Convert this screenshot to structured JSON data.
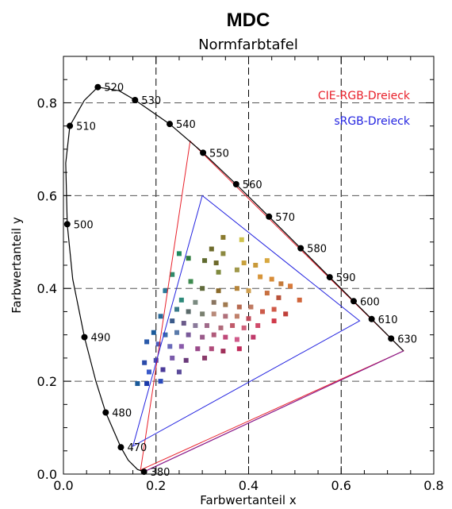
{
  "chart_data": {
    "type": "scatter",
    "title": "MDC",
    "subtitle": "Normfarbtafel",
    "xlabel": "Farbwertanteil x",
    "ylabel": "Farbwertanteil y",
    "xlim": [
      0.0,
      0.8
    ],
    "ylim": [
      0.0,
      0.9
    ],
    "xticks": [
      "0.0",
      "0.2",
      "0.4",
      "0.6",
      "0.8"
    ],
    "yticks": [
      "0.0",
      "0.2",
      "0.4",
      "0.6",
      "0.8"
    ],
    "grid": "dashed",
    "legend": [
      {
        "name": "CIE-RGB-Dreieck",
        "color": "#e8202a"
      },
      {
        "name": "sRGB-Dreieck",
        "color": "#2424e0"
      }
    ],
    "spectral_locus": {
      "color": "#000000",
      "points": [
        [
          0.7347,
          0.2653
        ],
        [
          0.7079,
          0.292
        ],
        [
          0.6658,
          0.334
        ],
        [
          0.627,
          0.3725
        ],
        [
          0.5752,
          0.4242
        ],
        [
          0.5125,
          0.4866
        ],
        [
          0.4441,
          0.5547
        ],
        [
          0.3731,
          0.6245
        ],
        [
          0.3016,
          0.6923
        ],
        [
          0.2296,
          0.7543
        ],
        [
          0.1547,
          0.8059
        ],
        [
          0.12,
          0.826
        ],
        [
          0.0743,
          0.8338
        ],
        [
          0.045,
          0.805
        ],
        [
          0.0139,
          0.7502
        ],
        [
          0.005,
          0.67
        ],
        [
          0.0082,
          0.5384
        ],
        [
          0.02,
          0.42
        ],
        [
          0.0454,
          0.295
        ],
        [
          0.07,
          0.2
        ],
        [
          0.0913,
          0.1327
        ],
        [
          0.11,
          0.09
        ],
        [
          0.1241,
          0.0578
        ],
        [
          0.14,
          0.03
        ],
        [
          0.16,
          0.01
        ],
        [
          0.1741,
          0.005
        ]
      ],
      "markers": [
        {
          "label": "630",
          "x": 0.7079,
          "y": 0.292
        },
        {
          "label": "610",
          "x": 0.6658,
          "y": 0.334
        },
        {
          "label": "600",
          "x": 0.627,
          "y": 0.3725
        },
        {
          "label": "590",
          "x": 0.5752,
          "y": 0.4242
        },
        {
          "label": "580",
          "x": 0.5125,
          "y": 0.4866
        },
        {
          "label": "570",
          "x": 0.4441,
          "y": 0.5547
        },
        {
          "label": "560",
          "x": 0.3731,
          "y": 0.6245
        },
        {
          "label": "550",
          "x": 0.3016,
          "y": 0.6923
        },
        {
          "label": "540",
          "x": 0.2296,
          "y": 0.7543
        },
        {
          "label": "530",
          "x": 0.1547,
          "y": 0.8059
        },
        {
          "label": "520",
          "x": 0.0743,
          "y": 0.8338
        },
        {
          "label": "510",
          "x": 0.0139,
          "y": 0.7502
        },
        {
          "label": "500",
          "x": 0.0082,
          "y": 0.5384
        },
        {
          "label": "490",
          "x": 0.0454,
          "y": 0.295
        },
        {
          "label": "480",
          "x": 0.0913,
          "y": 0.1327
        },
        {
          "label": "470",
          "x": 0.1241,
          "y": 0.0578
        },
        {
          "label": "380",
          "x": 0.1741,
          "y": 0.005
        }
      ]
    },
    "cie_rgb_triangle": [
      [
        0.7347,
        0.2653
      ],
      [
        0.2738,
        0.7174
      ],
      [
        0.1666,
        0.0089
      ]
    ],
    "srgb_triangle": [
      [
        0.64,
        0.33
      ],
      [
        0.3,
        0.6
      ],
      [
        0.15,
        0.06
      ]
    ],
    "samples": [
      {
        "x": 0.345,
        "y": 0.51,
        "c": "#8a7a2e"
      },
      {
        "x": 0.385,
        "y": 0.505,
        "c": "#cfc24a"
      },
      {
        "x": 0.32,
        "y": 0.485,
        "c": "#6e6b2c"
      },
      {
        "x": 0.345,
        "y": 0.475,
        "c": "#8b8840"
      },
      {
        "x": 0.305,
        "y": 0.46,
        "c": "#5f6a2e"
      },
      {
        "x": 0.33,
        "y": 0.455,
        "c": "#6e6a2c"
      },
      {
        "x": 0.39,
        "y": 0.455,
        "c": "#c8a13c"
      },
      {
        "x": 0.415,
        "y": 0.45,
        "c": "#c99a3a"
      },
      {
        "x": 0.44,
        "y": 0.46,
        "c": "#d8a840"
      },
      {
        "x": 0.27,
        "y": 0.465,
        "c": "#2f7a3e"
      },
      {
        "x": 0.335,
        "y": 0.435,
        "c": "#7f8a3e"
      },
      {
        "x": 0.375,
        "y": 0.44,
        "c": "#a0984a"
      },
      {
        "x": 0.425,
        "y": 0.425,
        "c": "#d7953a"
      },
      {
        "x": 0.45,
        "y": 0.42,
        "c": "#d88c38"
      },
      {
        "x": 0.47,
        "y": 0.41,
        "c": "#c47a3a"
      },
      {
        "x": 0.49,
        "y": 0.405,
        "c": "#d87a3a"
      },
      {
        "x": 0.25,
        "y": 0.475,
        "c": "#1f8a5e"
      },
      {
        "x": 0.275,
        "y": 0.415,
        "c": "#3d8a4e"
      },
      {
        "x": 0.3,
        "y": 0.4,
        "c": "#606a3a"
      },
      {
        "x": 0.335,
        "y": 0.395,
        "c": "#8a6a2a"
      },
      {
        "x": 0.375,
        "y": 0.4,
        "c": "#b5843a"
      },
      {
        "x": 0.4,
        "y": 0.395,
        "c": "#d0a050"
      },
      {
        "x": 0.44,
        "y": 0.39,
        "c": "#c87040"
      },
      {
        "x": 0.465,
        "y": 0.38,
        "c": "#b9523a"
      },
      {
        "x": 0.51,
        "y": 0.375,
        "c": "#d0653a"
      },
      {
        "x": 0.235,
        "y": 0.43,
        "c": "#2f8a6a"
      },
      {
        "x": 0.255,
        "y": 0.375,
        "c": "#2e8a7a"
      },
      {
        "x": 0.285,
        "y": 0.37,
        "c": "#7a8a80"
      },
      {
        "x": 0.325,
        "y": 0.37,
        "c": "#8a7560"
      },
      {
        "x": 0.35,
        "y": 0.365,
        "c": "#a07a50"
      },
      {
        "x": 0.38,
        "y": 0.36,
        "c": "#b86a50"
      },
      {
        "x": 0.405,
        "y": 0.36,
        "c": "#c07a62"
      },
      {
        "x": 0.43,
        "y": 0.35,
        "c": "#cc5a4a"
      },
      {
        "x": 0.455,
        "y": 0.355,
        "c": "#d05a48"
      },
      {
        "x": 0.48,
        "y": 0.345,
        "c": "#c0403a"
      },
      {
        "x": 0.22,
        "y": 0.395,
        "c": "#2a7a9a"
      },
      {
        "x": 0.245,
        "y": 0.355,
        "c": "#3a7a8a"
      },
      {
        "x": 0.27,
        "y": 0.35,
        "c": "#5a6a6a"
      },
      {
        "x": 0.3,
        "y": 0.345,
        "c": "#7a8070"
      },
      {
        "x": 0.325,
        "y": 0.345,
        "c": "#b88a7a"
      },
      {
        "x": 0.35,
        "y": 0.34,
        "c": "#b0707a"
      },
      {
        "x": 0.375,
        "y": 0.34,
        "c": "#c0806a"
      },
      {
        "x": 0.4,
        "y": 0.335,
        "c": "#c04a5a"
      },
      {
        "x": 0.455,
        "y": 0.33,
        "c": "#d03a4a"
      },
      {
        "x": 0.21,
        "y": 0.34,
        "c": "#2a6a9a"
      },
      {
        "x": 0.235,
        "y": 0.33,
        "c": "#3a5a8a"
      },
      {
        "x": 0.26,
        "y": 0.325,
        "c": "#6a5a8a"
      },
      {
        "x": 0.285,
        "y": 0.32,
        "c": "#8a7a9a"
      },
      {
        "x": 0.31,
        "y": 0.32,
        "c": "#a06a8a"
      },
      {
        "x": 0.34,
        "y": 0.315,
        "c": "#b06a7a"
      },
      {
        "x": 0.365,
        "y": 0.32,
        "c": "#c05a6a"
      },
      {
        "x": 0.39,
        "y": 0.315,
        "c": "#d0607a"
      },
      {
        "x": 0.42,
        "y": 0.32,
        "c": "#d04a6a"
      },
      {
        "x": 0.195,
        "y": 0.305,
        "c": "#1a5a9a"
      },
      {
        "x": 0.22,
        "y": 0.3,
        "c": "#3a6aaa"
      },
      {
        "x": 0.245,
        "y": 0.305,
        "c": "#5a7aaa"
      },
      {
        "x": 0.27,
        "y": 0.3,
        "c": "#7a5a9a"
      },
      {
        "x": 0.3,
        "y": 0.295,
        "c": "#9a5a8a"
      },
      {
        "x": 0.325,
        "y": 0.3,
        "c": "#b05a7a"
      },
      {
        "x": 0.35,
        "y": 0.295,
        "c": "#c04a7a"
      },
      {
        "x": 0.375,
        "y": 0.29,
        "c": "#d05a8a"
      },
      {
        "x": 0.41,
        "y": 0.295,
        "c": "#c03a6a"
      },
      {
        "x": 0.18,
        "y": 0.285,
        "c": "#2a5aaa"
      },
      {
        "x": 0.205,
        "y": 0.28,
        "c": "#4a5aba"
      },
      {
        "x": 0.23,
        "y": 0.275,
        "c": "#6a6aba"
      },
      {
        "x": 0.255,
        "y": 0.275,
        "c": "#8a5aaa"
      },
      {
        "x": 0.29,
        "y": 0.27,
        "c": "#9a4a8a"
      },
      {
        "x": 0.32,
        "y": 0.27,
        "c": "#b04a7a"
      },
      {
        "x": 0.345,
        "y": 0.265,
        "c": "#a0305a"
      },
      {
        "x": 0.38,
        "y": 0.27,
        "c": "#c02a5a"
      },
      {
        "x": 0.175,
        "y": 0.24,
        "c": "#2a4aaa"
      },
      {
        "x": 0.2,
        "y": 0.245,
        "c": "#4a4aaa"
      },
      {
        "x": 0.235,
        "y": 0.25,
        "c": "#7a5aaa"
      },
      {
        "x": 0.265,
        "y": 0.245,
        "c": "#6a3a7a"
      },
      {
        "x": 0.305,
        "y": 0.25,
        "c": "#8a3a6a"
      },
      {
        "x": 0.185,
        "y": 0.22,
        "c": "#3a5aca"
      },
      {
        "x": 0.215,
        "y": 0.225,
        "c": "#4a3a9a"
      },
      {
        "x": 0.25,
        "y": 0.22,
        "c": "#5a4a9a"
      },
      {
        "x": 0.21,
        "y": 0.2,
        "c": "#2a4aba"
      },
      {
        "x": 0.18,
        "y": 0.195,
        "c": "#1a3aaa"
      },
      {
        "x": 0.16,
        "y": 0.195,
        "c": "#1a5a9a"
      }
    ]
  }
}
